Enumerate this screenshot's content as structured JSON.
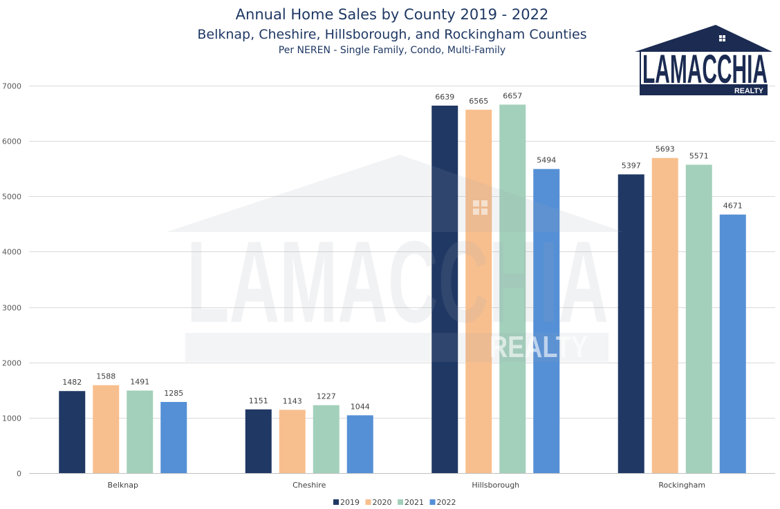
{
  "chart_data": {
    "type": "bar",
    "title": "Annual Home Sales by County 2019 - 2022",
    "subtitle": "Belknap, Cheshire, Hillsborough, and Rockingham Counties",
    "note": "Per NEREN - Single Family, Condo, Multi-Family",
    "categories": [
      "Belknap",
      "Cheshire",
      "Hillsborough",
      "Rockingham"
    ],
    "series": [
      {
        "name": "2019",
        "values": [
          1482,
          1151,
          6639,
          5397
        ],
        "color": "#203864"
      },
      {
        "name": "2020",
        "values": [
          1588,
          1143,
          6565,
          5693
        ],
        "color": "#f8bf8e"
      },
      {
        "name": "2021",
        "values": [
          1491,
          1227,
          6657,
          5571
        ],
        "color": "#a3d0bb"
      },
      {
        "name": "2022",
        "values": [
          1285,
          1044,
          5494,
          4671
        ],
        "color": "#5590d6"
      }
    ],
    "ylim": [
      0,
      7000
    ],
    "yticks": [
      0,
      1000,
      2000,
      3000,
      4000,
      5000,
      6000,
      7000
    ],
    "grid": true,
    "legend": "bottom-center",
    "data_labels": true
  },
  "logo": {
    "name": "LAMACCHIA",
    "tagline": "REALTY",
    "icon": "house-roof-icon"
  },
  "colors": {
    "title": "#1f3864",
    "logo": "#1b2b52",
    "axis_text": "#595959",
    "label_text": "#404040",
    "grid": "#d9d9d9"
  }
}
